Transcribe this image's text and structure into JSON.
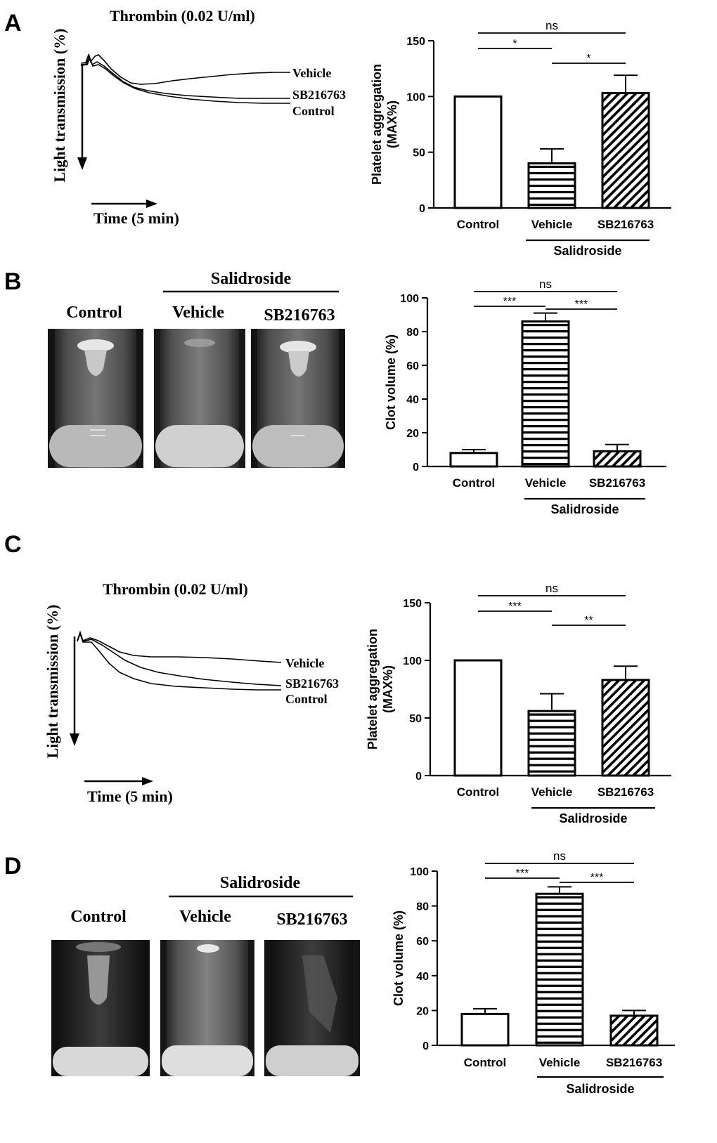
{
  "panel_labels": [
    "A",
    "B",
    "C",
    "D"
  ],
  "panels": {
    "A": {
      "trace": {
        "title": "Thrombin (0.02 U/ml)",
        "y_axis_label": "Light transmission (%)",
        "time_label": "Time (5 min)",
        "curve_labels": [
          "Vehicle",
          "SB216763",
          "Control"
        ]
      }
    },
    "B": {
      "photo": {
        "group_label": "Salidroside",
        "tube_labels": [
          "Control",
          "Vehicle",
          "SB216763"
        ]
      }
    },
    "C": {
      "trace": {
        "title": "Thrombin (0.02 U/ml)",
        "y_axis_label": "Light transmission (%)",
        "time_label": "Time (5 min)",
        "curve_labels": [
          "Vehicle",
          "SB216763",
          "Control"
        ]
      }
    },
    "D": {
      "photo": {
        "group_label": "Salidroside",
        "tube_labels": [
          "Control",
          "Vehicle",
          "SB216763"
        ]
      }
    }
  },
  "colors": {
    "ink": "#000000",
    "background": "#ffffff"
  },
  "chart_data": [
    {
      "id": "A",
      "type": "bar",
      "categories": [
        "Control",
        "Vehicle",
        "SB216763"
      ],
      "values": [
        100,
        40,
        103
      ],
      "errors": [
        0,
        13,
        16
      ],
      "patterns": [
        "open",
        "horizontal",
        "diagonal"
      ],
      "ylabel_lines": [
        "Platelet aggregation",
        "(MAX%)"
      ],
      "ylim": [
        0,
        150
      ],
      "yticks": [
        0,
        50,
        100,
        150
      ],
      "group_label": "Salidroside",
      "significance": [
        {
          "from": 0,
          "to": 2,
          "label": "ns"
        },
        {
          "from": 0,
          "to": 1,
          "label": "*"
        },
        {
          "from": 1,
          "to": 2,
          "label": "*"
        }
      ]
    },
    {
      "id": "B",
      "type": "bar",
      "categories": [
        "Control",
        "Vehicle",
        "SB216763"
      ],
      "values": [
        8,
        86,
        9
      ],
      "errors": [
        2,
        5,
        4
      ],
      "patterns": [
        "open",
        "horizontal",
        "diagonal"
      ],
      "ylabel_lines": [
        "Clot volume (%)"
      ],
      "ylim": [
        0,
        100
      ],
      "yticks": [
        0,
        20,
        40,
        60,
        80,
        100
      ],
      "group_label": "Salidroside",
      "significance": [
        {
          "from": 0,
          "to": 2,
          "label": "ns"
        },
        {
          "from": 0,
          "to": 1,
          "label": "***"
        },
        {
          "from": 1,
          "to": 2,
          "label": "***"
        }
      ]
    },
    {
      "id": "C",
      "type": "bar",
      "categories": [
        "Control",
        "Vehicle",
        "SB216763"
      ],
      "values": [
        100,
        56,
        83
      ],
      "errors": [
        0,
        15,
        12
      ],
      "patterns": [
        "open",
        "horizontal",
        "diagonal"
      ],
      "ylabel_lines": [
        "Platelet aggregation",
        "(MAX%)"
      ],
      "ylim": [
        0,
        150
      ],
      "yticks": [
        0,
        50,
        100,
        150
      ],
      "group_label": "Salidroside",
      "significance": [
        {
          "from": 0,
          "to": 2,
          "label": "ns"
        },
        {
          "from": 0,
          "to": 1,
          "label": "***"
        },
        {
          "from": 1,
          "to": 2,
          "label": "**"
        }
      ]
    },
    {
      "id": "D",
      "type": "bar",
      "categories": [
        "Control",
        "Vehicle",
        "SB216763"
      ],
      "values": [
        18,
        87,
        17
      ],
      "errors": [
        3,
        4,
        3
      ],
      "patterns": [
        "open",
        "horizontal",
        "diagonal"
      ],
      "ylabel_lines": [
        "Clot volume (%)"
      ],
      "ylim": [
        0,
        100
      ],
      "yticks": [
        0,
        20,
        40,
        60,
        80,
        100
      ],
      "group_label": "Salidroside",
      "significance": [
        {
          "from": 0,
          "to": 2,
          "label": "ns"
        },
        {
          "from": 0,
          "to": 1,
          "label": "***"
        },
        {
          "from": 1,
          "to": 2,
          "label": "***"
        }
      ]
    }
  ]
}
